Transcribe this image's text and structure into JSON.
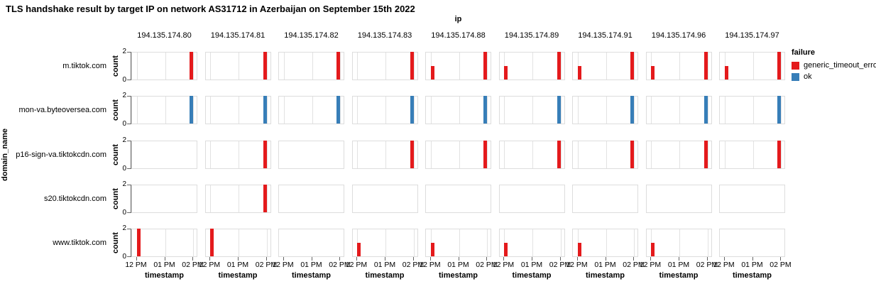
{
  "chart_data": {
    "type": "bar",
    "title": "TLS handshake result by target IP on network AS31712 in Azerbaijan on September 15th 2022",
    "facet": {
      "column_title": "ip",
      "row_title": "domain_name",
      "x_title": "timestamp",
      "y_title": "count"
    },
    "columns": [
      "194.135.174.80",
      "194.135.174.81",
      "194.135.174.82",
      "194.135.174.83",
      "194.135.174.88",
      "194.135.174.89",
      "194.135.174.91",
      "194.135.174.96",
      "194.135.174.97"
    ],
    "x_ticks": [
      "12 PM",
      "01 PM",
      "02 PM"
    ],
    "y_ticks": [
      "0",
      "2"
    ],
    "ylim": [
      0,
      2
    ],
    "grid": true,
    "legend": {
      "title": "failure",
      "position": "right",
      "items": [
        {
          "label": "generic_timeout_error",
          "color": "#e41a1c"
        },
        {
          "label": "ok",
          "color": "#377eb8"
        }
      ]
    },
    "rows": [
      {
        "domain": "m.tiktok.com",
        "cells": [
          [
            {
              "x": "02 PM",
              "count": 2,
              "failure": "generic_timeout_error"
            }
          ],
          [
            {
              "x": "02 PM",
              "count": 2,
              "failure": "generic_timeout_error"
            }
          ],
          [
            {
              "x": "02 PM",
              "count": 2,
              "failure": "generic_timeout_error"
            }
          ],
          [
            {
              "x": "02 PM",
              "count": 2,
              "failure": "generic_timeout_error"
            }
          ],
          [
            {
              "x": "12 PM",
              "count": 1,
              "failure": "generic_timeout_error"
            },
            {
              "x": "02 PM",
              "count": 2,
              "failure": "generic_timeout_error"
            }
          ],
          [
            {
              "x": "12 PM",
              "count": 1,
              "failure": "generic_timeout_error"
            },
            {
              "x": "02 PM",
              "count": 2,
              "failure": "generic_timeout_error"
            }
          ],
          [
            {
              "x": "12 PM",
              "count": 1,
              "failure": "generic_timeout_error"
            },
            {
              "x": "02 PM",
              "count": 2,
              "failure": "generic_timeout_error"
            }
          ],
          [
            {
              "x": "12 PM",
              "count": 1,
              "failure": "generic_timeout_error"
            },
            {
              "x": "02 PM",
              "count": 2,
              "failure": "generic_timeout_error"
            }
          ],
          [
            {
              "x": "12 PM",
              "count": 1,
              "failure": "generic_timeout_error"
            },
            {
              "x": "02 PM",
              "count": 2,
              "failure": "generic_timeout_error"
            }
          ]
        ]
      },
      {
        "domain": "mon-va.byteoversea.com",
        "cells": [
          [
            {
              "x": "02 PM",
              "count": 2,
              "failure": "ok"
            }
          ],
          [
            {
              "x": "02 PM",
              "count": 2,
              "failure": "ok"
            }
          ],
          [
            {
              "x": "02 PM",
              "count": 2,
              "failure": "ok"
            }
          ],
          [
            {
              "x": "02 PM",
              "count": 2,
              "failure": "ok"
            }
          ],
          [
            {
              "x": "02 PM",
              "count": 2,
              "failure": "ok"
            }
          ],
          [
            {
              "x": "02 PM",
              "count": 2,
              "failure": "ok"
            }
          ],
          [
            {
              "x": "02 PM",
              "count": 2,
              "failure": "ok"
            }
          ],
          [
            {
              "x": "02 PM",
              "count": 2,
              "failure": "ok"
            }
          ],
          [
            {
              "x": "02 PM",
              "count": 2,
              "failure": "ok"
            }
          ]
        ]
      },
      {
        "domain": "p16-sign-va.tiktokcdn.com",
        "cells": [
          [],
          [
            {
              "x": "02 PM",
              "count": 2,
              "failure": "generic_timeout_error"
            }
          ],
          [],
          [
            {
              "x": "02 PM",
              "count": 2,
              "failure": "generic_timeout_error"
            }
          ],
          [
            {
              "x": "02 PM",
              "count": 2,
              "failure": "generic_timeout_error"
            }
          ],
          [
            {
              "x": "02 PM",
              "count": 2,
              "failure": "generic_timeout_error"
            }
          ],
          [
            {
              "x": "02 PM",
              "count": 2,
              "failure": "generic_timeout_error"
            }
          ],
          [
            {
              "x": "02 PM",
              "count": 2,
              "failure": "generic_timeout_error"
            }
          ],
          [
            {
              "x": "02 PM",
              "count": 2,
              "failure": "generic_timeout_error"
            }
          ]
        ]
      },
      {
        "domain": "s20.tiktokcdn.com",
        "cells": [
          [],
          [
            {
              "x": "02 PM",
              "count": 2,
              "failure": "generic_timeout_error"
            }
          ],
          [],
          [],
          [],
          [],
          [],
          [],
          []
        ]
      },
      {
        "domain": "www.tiktok.com",
        "cells": [
          [
            {
              "x": "12 PM",
              "count": 2,
              "failure": "generic_timeout_error"
            }
          ],
          [
            {
              "x": "12 PM",
              "count": 2,
              "failure": "generic_timeout_error"
            }
          ],
          [],
          [
            {
              "x": "12 PM",
              "count": 1,
              "failure": "generic_timeout_error"
            }
          ],
          [
            {
              "x": "12 PM",
              "count": 1,
              "failure": "generic_timeout_error"
            }
          ],
          [
            {
              "x": "12 PM",
              "count": 1,
              "failure": "generic_timeout_error"
            }
          ],
          [
            {
              "x": "12 PM",
              "count": 1,
              "failure": "generic_timeout_error"
            }
          ],
          [
            {
              "x": "12 PM",
              "count": 1,
              "failure": "generic_timeout_error"
            }
          ],
          []
        ]
      }
    ]
  }
}
